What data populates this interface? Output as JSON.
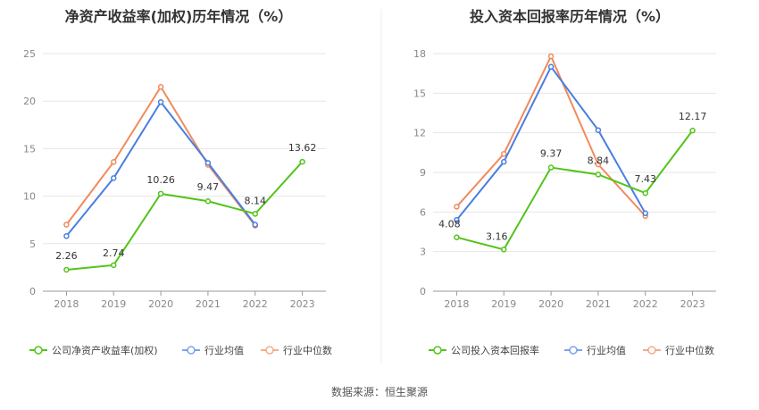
{
  "source": "数据来源：恒生聚源",
  "chart_data": [
    {
      "type": "line",
      "title": "净资产收益率(加权)历年情况（%）",
      "x": [
        "2018",
        "2019",
        "2020",
        "2021",
        "2022",
        "2023"
      ],
      "ylim": [
        0,
        25
      ],
      "yticks": [
        "0",
        "5",
        "10",
        "15",
        "20",
        "25"
      ],
      "grid": "horizontal",
      "legend_position": "bottom",
      "series": [
        {
          "name": "公司净资产收益率(加权)",
          "color": "#52c41a",
          "values": [
            2.26,
            2.74,
            10.26,
            9.47,
            8.14,
            13.62
          ],
          "labels": [
            "2.26",
            "2.74",
            "10.26",
            "9.47",
            "8.14",
            "13.62"
          ]
        },
        {
          "name": "行业均值",
          "color": "#4a7ee0",
          "values": [
            5.8,
            11.9,
            19.9,
            13.5,
            7.0,
            null
          ]
        },
        {
          "name": "行业中位数",
          "color": "#f08a5d",
          "values": [
            7.0,
            13.6,
            21.5,
            13.3,
            6.9,
            null
          ]
        }
      ]
    },
    {
      "type": "line",
      "title": "投入资本回报率历年情况（%）",
      "x": [
        "2018",
        "2019",
        "2020",
        "2021",
        "2022",
        "2023"
      ],
      "ylim": [
        0,
        18
      ],
      "yticks": [
        "0",
        "3",
        "6",
        "9",
        "12",
        "15",
        "18"
      ],
      "grid": "horizontal",
      "legend_position": "bottom",
      "series": [
        {
          "name": "公司投入资本回报率",
          "color": "#52c41a",
          "values": [
            4.08,
            3.16,
            9.37,
            8.84,
            7.43,
            12.17
          ],
          "labels": [
            "4.08",
            "3.16",
            "9.37",
            "8.84",
            "7.43",
            "12.17"
          ]
        },
        {
          "name": "行业均值",
          "color": "#4a7ee0",
          "values": [
            5.4,
            9.8,
            17.0,
            12.2,
            5.9,
            null
          ]
        },
        {
          "name": "行业中位数",
          "color": "#f08a5d",
          "values": [
            6.4,
            10.4,
            17.8,
            9.6,
            5.7,
            null
          ]
        }
      ]
    }
  ]
}
